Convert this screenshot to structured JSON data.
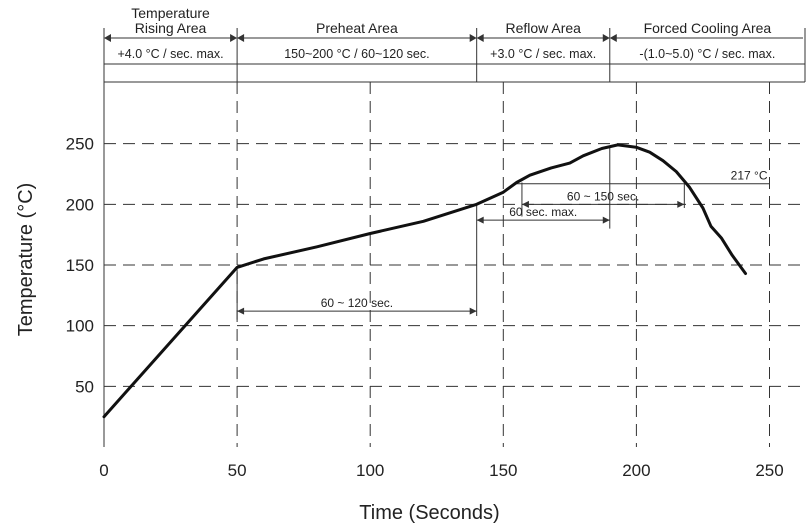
{
  "chart_data": {
    "type": "line",
    "title": "",
    "xlabel": "Time (Seconds)",
    "ylabel": "Temperature (°C)",
    "xlim": [
      0,
      270
    ],
    "ylim": [
      0,
      275
    ],
    "x_ticks": [
      0,
      50,
      100,
      150,
      200,
      250
    ],
    "y_ticks": [
      50,
      100,
      150,
      200,
      250
    ],
    "grid": true,
    "series": [
      {
        "name": "",
        "x": [
          0,
          50,
          60,
          80,
          100,
          120,
          140,
          150,
          155,
          160,
          168,
          175,
          180,
          187,
          193,
          200,
          205,
          210,
          215,
          220,
          225,
          228,
          232,
          236,
          241
        ],
        "y": [
          25,
          148,
          155,
          165,
          176,
          186,
          200,
          210,
          218,
          224,
          230,
          234,
          240,
          246,
          249,
          247,
          243,
          236,
          227,
          214,
          197,
          182,
          172,
          158,
          143
        ]
      }
    ],
    "zones": [
      {
        "label_lines": [
          "Temperature",
          "Rising Area"
        ],
        "x_start": 0,
        "x_end": 50,
        "rate": "+4.0 °C / sec. max."
      },
      {
        "label_lines": [
          "Preheat Area"
        ],
        "x_start": 50,
        "x_end": 140,
        "rate": "150~200 °C / 60~120 sec."
      },
      {
        "label_lines": [
          "Reflow Area"
        ],
        "x_start": 140,
        "x_end": 190,
        "rate": "+3.0 °C / sec. max."
      },
      {
        "label_lines": [
          "Forced Cooling Area"
        ],
        "x_start": 190,
        "x_end": 270,
        "rate": "-(1.0~5.0) °C / sec. max."
      }
    ],
    "annotations": [
      {
        "label": "60 ~ 120 sec.",
        "x_start": 50,
        "x_end": 140,
        "y": 112
      },
      {
        "label": "60 ~ 150 sec.",
        "x_start": 157,
        "x_end": 218,
        "y": 200
      },
      {
        "label": "60 sec. max.",
        "x_start": 140,
        "x_end": 190,
        "y": 187
      }
    ],
    "threshold": {
      "label": "217 °C",
      "y": 217,
      "x_start": 155,
      "x_end": 250
    }
  }
}
